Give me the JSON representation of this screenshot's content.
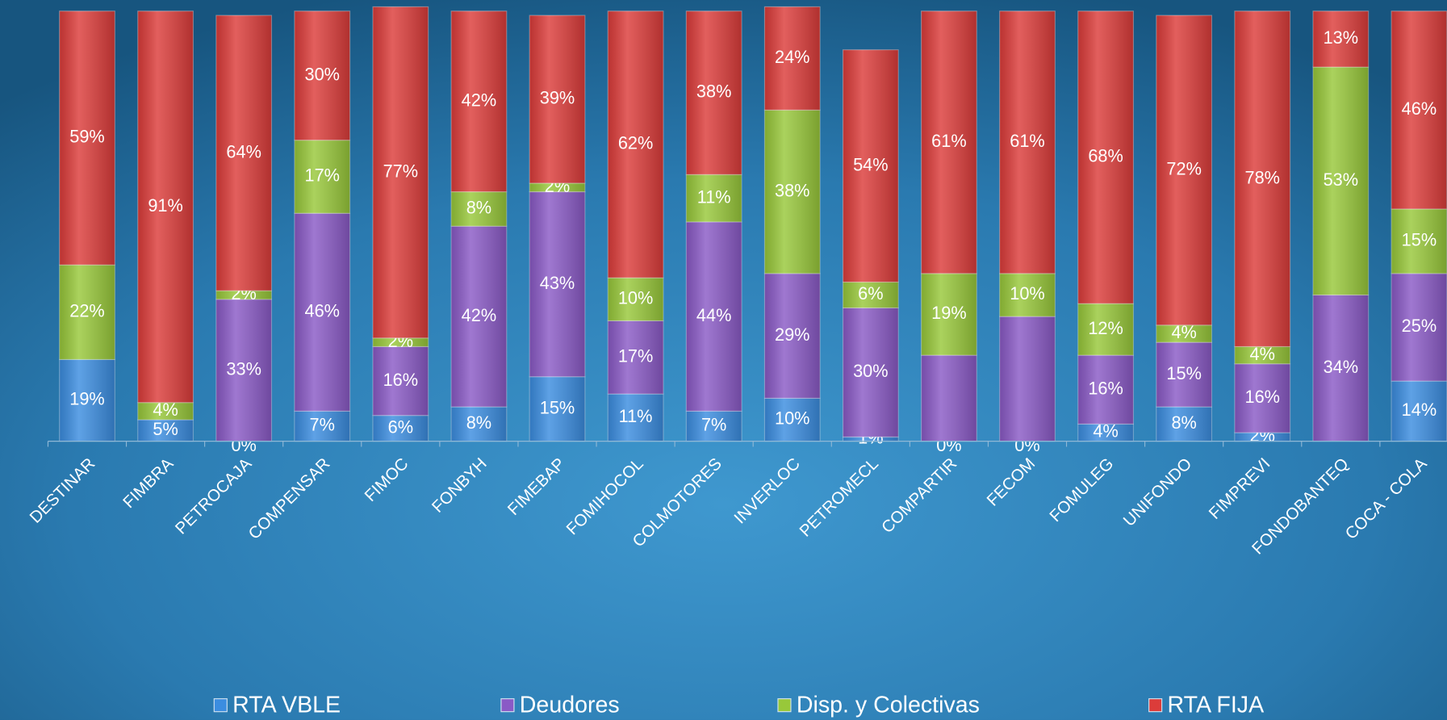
{
  "chart_data": {
    "type": "stacked_bar",
    "categories": [
      "DESTINAR",
      "FIMBRA",
      "PETROCAJA",
      "COMPENSAR",
      "FIMOC",
      "FONBYH",
      "FIMEBAP",
      "FOMIHOCOL",
      "COLMOTORES",
      "INVERLOC",
      "PETROMECL",
      "COMPARTIR",
      "FECOM",
      "FOMULEG",
      "UNIFONDO",
      "FIMPREVI",
      "FONDOBANTEQ",
      "COCA - COLA"
    ],
    "ylim": [
      0,
      100
    ],
    "series": [
      {
        "name": "RTA VBLE",
        "color": "#3b8de0",
        "values": [
          19,
          5,
          0,
          7,
          6,
          8,
          15,
          11,
          7,
          10,
          1,
          0,
          0,
          4,
          8,
          2,
          0,
          14
        ],
        "value_labels": [
          "19%",
          "5%",
          "0%",
          "7%",
          "6%",
          "8%",
          "15%",
          "11%",
          "7%",
          "10%",
          "1%",
          "0%",
          "0%",
          "4%",
          "8%",
          "2%",
          null,
          "14%"
        ]
      },
      {
        "name": "Deudores",
        "color": "#8a5ac6",
        "values": [
          0,
          0,
          33,
          46,
          16,
          42,
          43,
          17,
          44,
          29,
          30,
          20,
          29,
          16,
          15,
          16,
          34,
          25
        ],
        "value_labels": [
          null,
          null,
          "33%",
          "46%",
          "16%",
          "42%",
          "43%",
          "17%",
          "44%",
          "29%",
          "30%",
          null,
          null,
          "16%",
          "15%",
          "16%",
          "34%",
          "25%"
        ]
      },
      {
        "name": "Disp. y Colectivas",
        "color": "#98c83a",
        "values": [
          22,
          4,
          2,
          17,
          2,
          8,
          2,
          10,
          11,
          38,
          6,
          19,
          10,
          12,
          4,
          4,
          53,
          15
        ],
        "value_labels": [
          "22%",
          "4%",
          "2%",
          "17%",
          "2%",
          "8%",
          "2%",
          "10%",
          "11%",
          "38%",
          "6%",
          "19%",
          "10%",
          "12%",
          "4%",
          "4%",
          "53%",
          "15%"
        ]
      },
      {
        "name": "RTA FIJA",
        "color": "#dc3c3a",
        "values": [
          59,
          91,
          64,
          30,
          77,
          42,
          39,
          62,
          38,
          24,
          54,
          61,
          61,
          68,
          72,
          78,
          13,
          46
        ],
        "value_labels": [
          "59%",
          "91%",
          "64%",
          "30%",
          "77%",
          "42%",
          "39%",
          "62%",
          "38%",
          "24%",
          "54%",
          "61%",
          "61%",
          "68%",
          "72%",
          "78%",
          "13%",
          "46%"
        ]
      }
    ]
  }
}
